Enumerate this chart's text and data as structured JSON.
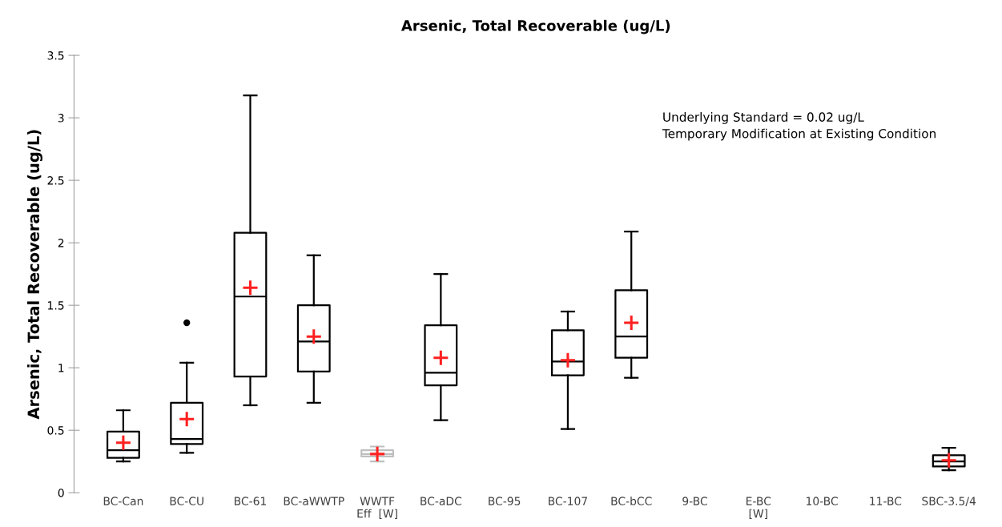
{
  "chart_data": {
    "type": "box",
    "title": "Arsenic, Total Recoverable (ug/L)",
    "ylabel": "Arsenic, Total Recoverable (ug/L)",
    "categories": [
      "BC-Can",
      "BC-CU",
      "BC-61",
      "BC-aWWTP",
      "WWTF\nEff  [W]",
      "BC-aDC",
      "BC-95",
      "BC-107",
      "BC-bCC",
      "9-BC",
      "E-BC\n[W]",
      "10-BC",
      "11-BC",
      "SBC-3.5/4"
    ],
    "boxes": [
      {
        "low": 0.25,
        "q1": 0.28,
        "median": 0.34,
        "q3": 0.49,
        "high": 0.66,
        "mean": 0.4
      },
      {
        "low": 0.32,
        "q1": 0.39,
        "median": 0.43,
        "q3": 0.72,
        "high": 1.04,
        "mean": 0.59,
        "outliers": [
          1.36
        ]
      },
      {
        "low": 0.7,
        "q1": 0.93,
        "median": 1.57,
        "q3": 2.08,
        "high": 3.18,
        "mean": 1.64
      },
      {
        "low": 0.72,
        "q1": 0.97,
        "median": 1.21,
        "q3": 1.5,
        "high": 1.9,
        "mean": 1.25
      },
      {
        "low": 0.25,
        "q1": 0.29,
        "median": 0.31,
        "q3": 0.34,
        "high": 0.37,
        "mean": 0.31
      },
      {
        "low": 0.58,
        "q1": 0.86,
        "median": 0.96,
        "q3": 1.34,
        "high": 1.75,
        "mean": 1.08
      },
      null,
      {
        "low": 0.51,
        "q1": 0.94,
        "median": 1.05,
        "q3": 1.3,
        "high": 1.45,
        "mean": 1.06
      },
      {
        "low": 0.92,
        "q1": 1.08,
        "median": 1.25,
        "q3": 1.62,
        "high": 2.09,
        "mean": 1.36
      },
      null,
      null,
      null,
      null,
      {
        "low": 0.18,
        "q1": 0.21,
        "median": 0.25,
        "q3": 0.3,
        "high": 0.36,
        "mean": 0.26
      }
    ],
    "colors": [
      "#000000",
      "#000000",
      "#000000",
      "#000000",
      "#bfbfbf",
      "#000000",
      null,
      "#000000",
      "#000000",
      null,
      null,
      null,
      null,
      "#000000"
    ],
    "ylim": [
      0,
      3.5
    ],
    "yticks": [
      0,
      0.5,
      1,
      1.5,
      2,
      2.5,
      3,
      3.5
    ],
    "grid": false,
    "annotations": [
      "Underlying Standard = 0.02 ug/L\nTemporary Modification at Existing Condition"
    ]
  }
}
